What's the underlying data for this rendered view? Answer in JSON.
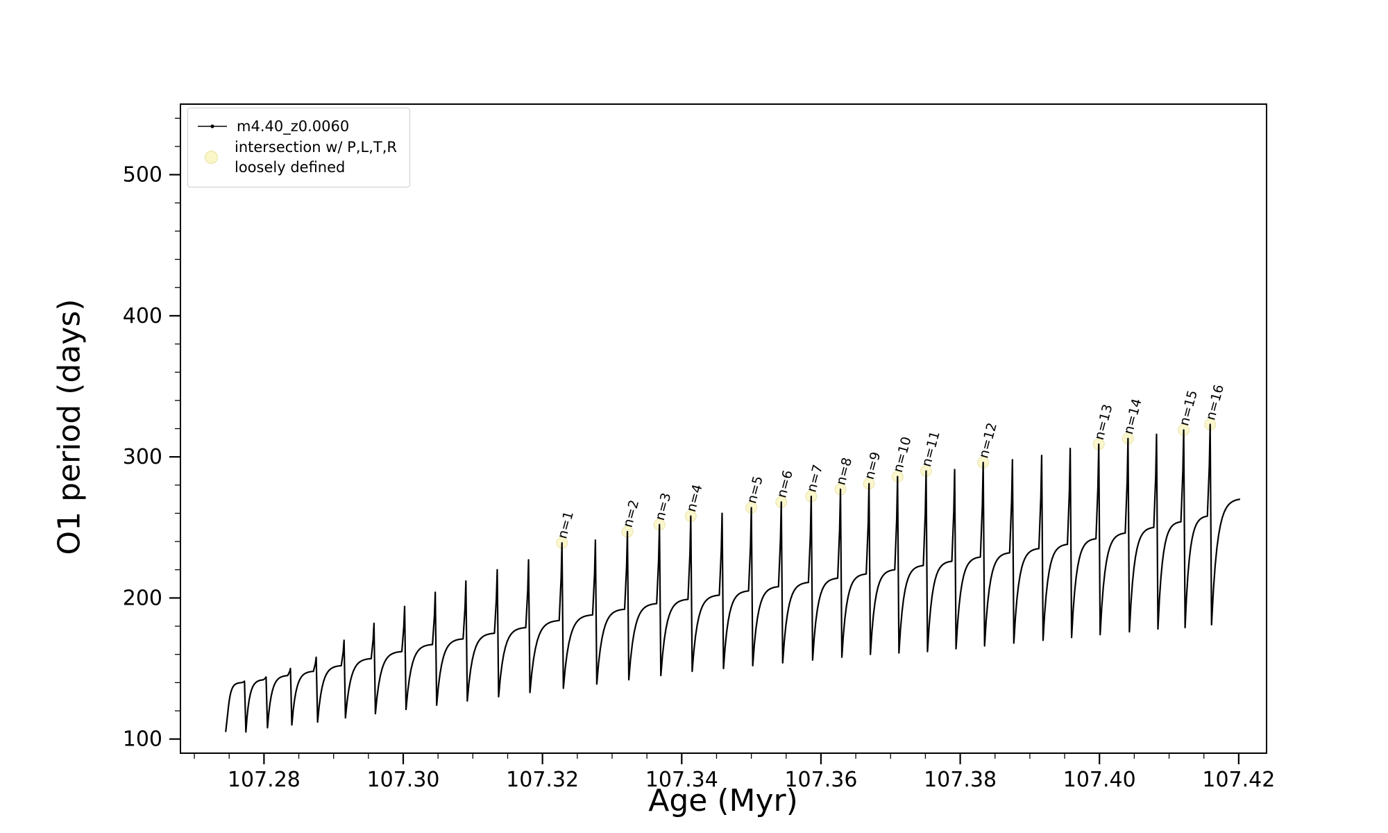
{
  "figure": {
    "background": "#ffffff"
  },
  "chart_data": {
    "type": "line",
    "title": "",
    "xlabel": "Age (Myr)",
    "ylabel": "O1 period (days)",
    "xlim": [
      107.268,
      107.424
    ],
    "ylim": [
      90,
      550
    ],
    "x_major_ticks": [
      107.28,
      107.3,
      107.32,
      107.34,
      107.36,
      107.38,
      107.4,
      107.42
    ],
    "x_major_tick_labels": [
      "107.28",
      "107.30",
      "107.32",
      "107.34",
      "107.36",
      "107.38",
      "107.40",
      "107.42"
    ],
    "x_minor_tick_step": 0.005,
    "y_major_ticks": [
      100,
      200,
      300,
      400,
      500
    ],
    "y_major_tick_labels": [
      "100",
      "200",
      "300",
      "400",
      "500"
    ],
    "y_minor_tick_step": 20,
    "grid": false,
    "legend_position": "upper-left",
    "series_name": "m4.40_z0.0060",
    "line_color": "#000000",
    "intersection_marker_color": "#faf6c8",
    "intersection_marker_edge": "#e8e0a0",
    "start": {
      "x": 107.2745,
      "y": 105,
      "y_rise": 123
    },
    "pulses": [
      {
        "x": 107.2772,
        "plateau": 140,
        "peak": 141,
        "dip": 105,
        "label": ""
      },
      {
        "x": 107.2803,
        "plateau": 142,
        "peak": 144,
        "dip": 108,
        "label": ""
      },
      {
        "x": 107.2838,
        "plateau": 145,
        "peak": 150,
        "dip": 110,
        "label": ""
      },
      {
        "x": 107.2875,
        "plateau": 148,
        "peak": 158,
        "dip": 112,
        "label": ""
      },
      {
        "x": 107.2915,
        "plateau": 152,
        "peak": 170,
        "dip": 115,
        "label": ""
      },
      {
        "x": 107.2958,
        "plateau": 157,
        "peak": 182,
        "dip": 118,
        "label": ""
      },
      {
        "x": 107.3002,
        "plateau": 162,
        "peak": 194,
        "dip": 121,
        "label": ""
      },
      {
        "x": 107.3046,
        "plateau": 167,
        "peak": 204,
        "dip": 124,
        "label": ""
      },
      {
        "x": 107.309,
        "plateau": 171,
        "peak": 212,
        "dip": 127,
        "label": ""
      },
      {
        "x": 107.3135,
        "plateau": 175,
        "peak": 220,
        "dip": 130,
        "label": ""
      },
      {
        "x": 107.318,
        "plateau": 179,
        "peak": 227,
        "dip": 133,
        "label": ""
      },
      {
        "x": 107.3228,
        "plateau": 184,
        "peak": 239,
        "dip": 136,
        "label": "n=1"
      },
      {
        "x": 107.3276,
        "plateau": 188,
        "peak": 241,
        "dip": 139,
        "label": ""
      },
      {
        "x": 107.3322,
        "plateau": 192,
        "peak": 247,
        "dip": 142,
        "label": "n=2"
      },
      {
        "x": 107.3368,
        "plateau": 196,
        "peak": 252,
        "dip": 145,
        "label": "n=3"
      },
      {
        "x": 107.3413,
        "plateau": 199,
        "peak": 258,
        "dip": 148,
        "label": "n=4"
      },
      {
        "x": 107.3458,
        "plateau": 202,
        "peak": 260,
        "dip": 150,
        "label": ""
      },
      {
        "x": 107.35,
        "plateau": 205,
        "peak": 264,
        "dip": 152,
        "label": "n=5"
      },
      {
        "x": 107.3543,
        "plateau": 208,
        "peak": 268,
        "dip": 154,
        "label": "n=6"
      },
      {
        "x": 107.3586,
        "plateau": 211,
        "peak": 272,
        "dip": 156,
        "label": "n=7"
      },
      {
        "x": 107.3628,
        "plateau": 214,
        "peak": 277,
        "dip": 158,
        "label": "n=8"
      },
      {
        "x": 107.3669,
        "plateau": 217,
        "peak": 281,
        "dip": 160,
        "label": "n=9"
      },
      {
        "x": 107.371,
        "plateau": 220,
        "peak": 286,
        "dip": 161,
        "label": "n=10"
      },
      {
        "x": 107.3751,
        "plateau": 223,
        "peak": 290,
        "dip": 162,
        "label": "n=11"
      },
      {
        "x": 107.3792,
        "plateau": 226,
        "peak": 291,
        "dip": 164,
        "label": ""
      },
      {
        "x": 107.3833,
        "plateau": 229,
        "peak": 296,
        "dip": 166,
        "label": "n=12"
      },
      {
        "x": 107.3875,
        "plateau": 232,
        "peak": 298,
        "dip": 168,
        "label": ""
      },
      {
        "x": 107.3917,
        "plateau": 235,
        "peak": 301,
        "dip": 170,
        "label": ""
      },
      {
        "x": 107.3958,
        "plateau": 238,
        "peak": 306,
        "dip": 172,
        "label": ""
      },
      {
        "x": 107.3999,
        "plateau": 242,
        "peak": 309,
        "dip": 174,
        "label": "n=13"
      },
      {
        "x": 107.4041,
        "plateau": 246,
        "peak": 313,
        "dip": 176,
        "label": "n=14"
      },
      {
        "x": 107.4082,
        "plateau": 250,
        "peak": 316,
        "dip": 178,
        "label": ""
      },
      {
        "x": 107.4121,
        "plateau": 254,
        "peak": 319,
        "dip": 179,
        "label": "n=15"
      },
      {
        "x": 107.4159,
        "plateau": 258,
        "peak": 323,
        "dip": 181,
        "label": "n=16"
      }
    ],
    "end": {
      "x": 107.4202,
      "y": 270
    },
    "legend": {
      "series": {
        "label": "m4.40_z0.0060"
      },
      "intersection": {
        "label_line1": "intersection w/ P,L,T,R",
        "label_line2": "loosely defined"
      }
    }
  }
}
